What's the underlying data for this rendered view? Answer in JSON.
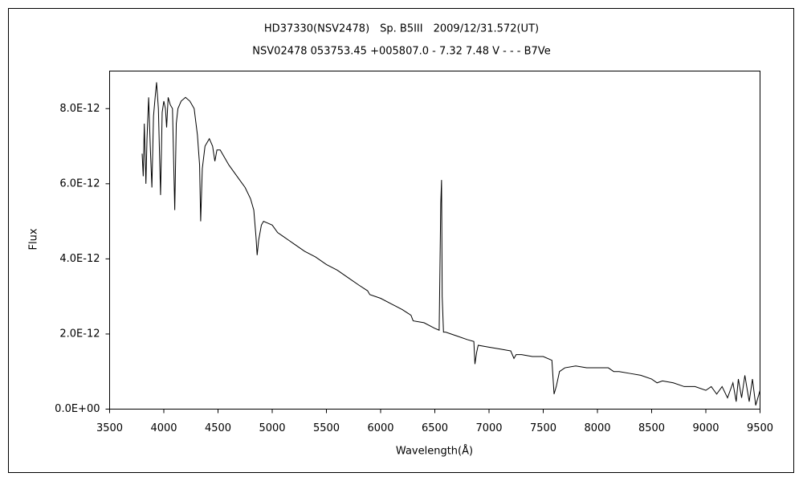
{
  "chart_data": {
    "type": "line",
    "title": "HD37330(NSV2478)　Sp. B5III　2009/12/31.572(UT)",
    "subtitle": "NSV02478 053753.45 +005807.0 - 7.32 7.48 V - - - B7Ve",
    "x_label": "Wavelength(Å)",
    "y_label": "Flux",
    "xlim": [
      3500,
      9500
    ],
    "xticks": [
      3500,
      4000,
      4500,
      5000,
      5500,
      6000,
      6500,
      7000,
      7500,
      8000,
      8500,
      9000,
      9500
    ],
    "ylim": [
      0,
      9e-12
    ],
    "yticks": [
      {
        "value": 0,
        "label": "0.0E+00"
      },
      {
        "value": 2e-12,
        "label": "2.0E-12"
      },
      {
        "value": 4e-12,
        "label": "4.0E-12"
      },
      {
        "value": 6e-12,
        "label": "6.0E-12"
      },
      {
        "value": 8e-12,
        "label": "8.0E-12"
      }
    ],
    "grid": false,
    "series": [
      {
        "color": "#000000",
        "x": [
          3800,
          3810,
          3820,
          3830,
          3835,
          3845,
          3860,
          3875,
          3890,
          3905,
          3920,
          3933,
          3950,
          3970,
          3985,
          4000,
          4015,
          4026,
          4040,
          4060,
          4080,
          4101,
          4115,
          4130,
          4160,
          4200,
          4240,
          4280,
          4310,
          4330,
          4340,
          4355,
          4380,
          4420,
          4450,
          4471,
          4490,
          4520,
          4560,
          4600,
          4650,
          4700,
          4750,
          4800,
          4830,
          4850,
          4861,
          4875,
          4900,
          4920,
          4960,
          5000,
          5050,
          5100,
          5150,
          5200,
          5300,
          5400,
          5500,
          5600,
          5700,
          5800,
          5880,
          5900,
          6000,
          6100,
          6200,
          6280,
          6300,
          6400,
          6500,
          6540,
          6555,
          6562,
          6568,
          6580,
          6600,
          6700,
          6800,
          6860,
          6870,
          6885,
          6900,
          7000,
          7100,
          7200,
          7230,
          7250,
          7300,
          7400,
          7500,
          7580,
          7600,
          7620,
          7650,
          7700,
          7800,
          7900,
          8000,
          8100,
          8150,
          8200,
          8300,
          8400,
          8500,
          8550,
          8600,
          8700,
          8800,
          8900,
          9000,
          9050,
          9100,
          9150,
          9200,
          9250,
          9280,
          9300,
          9330,
          9360,
          9400,
          9430,
          9460,
          9500
        ],
        "values": [
          6.8e-12,
          6.2e-12,
          7.6e-12,
          6.5e-12,
          6e-12,
          7.2e-12,
          8.3e-12,
          7e-12,
          5.9e-12,
          7.8e-12,
          8.3e-12,
          8.7e-12,
          8e-12,
          5.7e-12,
          7.9e-12,
          8.2e-12,
          8e-12,
          7.5e-12,
          8.3e-12,
          8.1e-12,
          8e-12,
          5.3e-12,
          7.6e-12,
          8e-12,
          8.2e-12,
          8.3e-12,
          8.2e-12,
          8e-12,
          7.3e-12,
          6.5e-12,
          5e-12,
          6.4e-12,
          7e-12,
          7.2e-12,
          7e-12,
          6.6e-12,
          6.9e-12,
          6.9e-12,
          6.7e-12,
          6.5e-12,
          6.3e-12,
          6.1e-12,
          5.9e-12,
          5.6e-12,
          5.3e-12,
          4.6e-12,
          4.1e-12,
          4.5e-12,
          4.9e-12,
          5e-12,
          4.95e-12,
          4.9e-12,
          4.7e-12,
          4.6e-12,
          4.5e-12,
          4.4e-12,
          4.2e-12,
          4.05e-12,
          3.85e-12,
          3.7e-12,
          3.5e-12,
          3.3e-12,
          3.15e-12,
          3.05e-12,
          2.95e-12,
          2.8e-12,
          2.65e-12,
          2.5e-12,
          2.35e-12,
          2.3e-12,
          2.15e-12,
          2.1e-12,
          5.5e-12,
          6.1e-12,
          3e-12,
          2.05e-12,
          2.05e-12,
          1.95e-12,
          1.85e-12,
          1.8e-12,
          1.2e-12,
          1.5e-12,
          1.7e-12,
          1.65e-12,
          1.6e-12,
          1.55e-12,
          1.35e-12,
          1.45e-12,
          1.45e-12,
          1.4e-12,
          1.4e-12,
          1.3e-12,
          4e-13,
          6e-13,
          1e-12,
          1.1e-12,
          1.15e-12,
          1.1e-12,
          1.1e-12,
          1.1e-12,
          1e-12,
          1e-12,
          9.5e-13,
          9e-13,
          8e-13,
          7e-13,
          7.5e-13,
          7e-13,
          6e-13,
          6e-13,
          5e-13,
          6e-13,
          4e-13,
          6e-13,
          3e-13,
          7e-13,
          2e-13,
          8e-13,
          3e-13,
          9e-13,
          2e-13,
          8e-13,
          1e-13,
          5e-13
        ]
      }
    ]
  }
}
